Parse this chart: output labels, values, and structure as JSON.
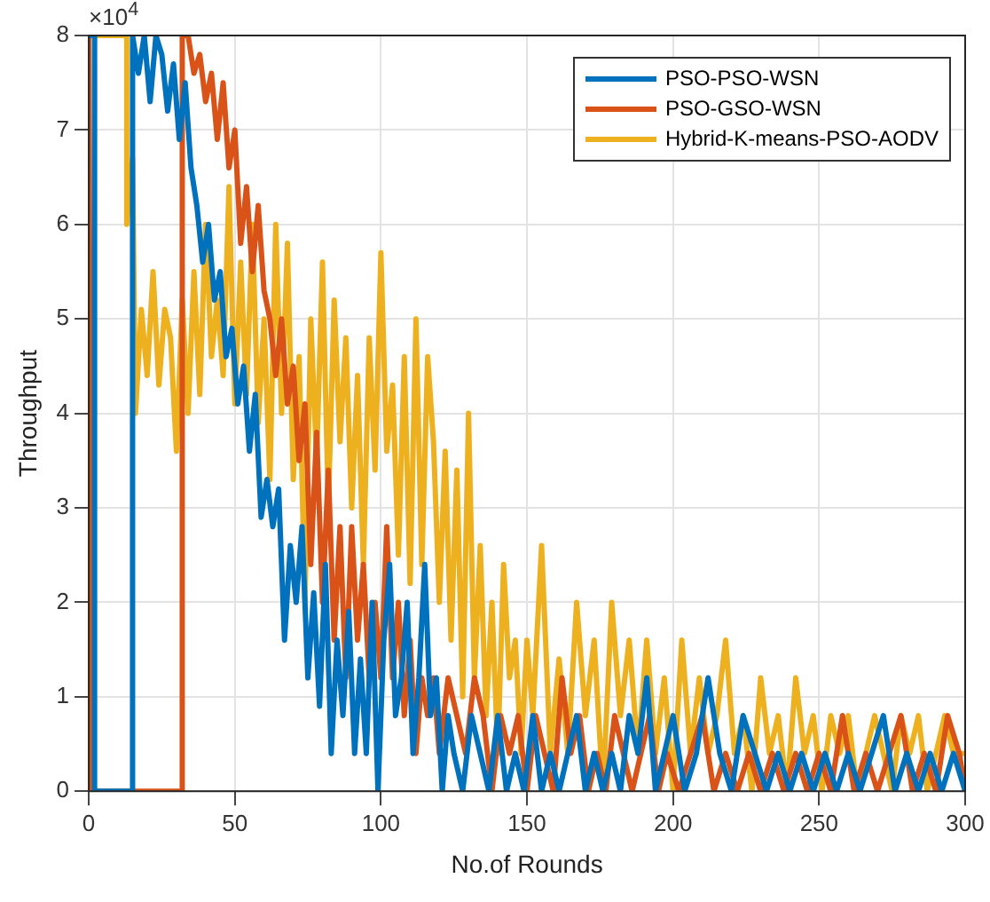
{
  "chart_data": {
    "type": "line",
    "xlabel": "No.of Rounds",
    "ylabel": "Throughput",
    "annotations": [
      "×10$^{4}$"
    ],
    "xlim": [
      0,
      300
    ],
    "xticks": [
      0,
      50,
      100,
      150,
      200,
      250,
      300
    ],
    "ylim": [
      0,
      8
    ],
    "yticks": [
      0,
      1,
      2,
      3,
      4,
      5,
      6,
      7,
      8
    ],
    "grid": true,
    "legend": "top right",
    "marker": "none",
    "line_style": "solid",
    "series": [
      {
        "name": "PSO-PSO-WSN",
        "color": "#0072bd",
        "x": [
          0,
          2,
          2,
          15,
          15,
          17,
          19,
          21,
          23,
          25,
          27,
          29,
          31,
          33,
          35,
          37,
          39,
          41,
          43,
          45,
          47,
          49,
          51,
          53,
          55,
          57,
          59,
          61,
          63,
          65,
          67,
          69,
          71,
          73,
          75,
          77,
          79,
          81,
          83,
          85,
          87,
          89,
          91,
          93,
          95,
          97,
          99,
          101,
          103,
          105,
          107,
          109,
          111,
          113,
          115,
          117,
          119,
          121,
          123,
          125,
          128,
          131,
          134,
          137,
          140,
          143,
          146,
          149,
          152,
          155,
          158,
          161,
          164,
          167,
          170,
          173,
          176,
          179,
          182,
          185,
          188,
          191,
          194,
          197,
          200,
          204,
          208,
          212,
          216,
          220,
          224,
          228,
          232,
          236,
          240,
          244,
          248,
          252,
          256,
          260,
          264,
          268,
          272,
          276,
          280,
          284,
          288,
          292,
          296,
          300
        ],
        "values": [
          8,
          8,
          0,
          0,
          8,
          7.6,
          8,
          7.3,
          8,
          7.8,
          7.2,
          7.7,
          6.9,
          7.5,
          6.6,
          6.2,
          5.6,
          6.0,
          5.2,
          5.5,
          4.6,
          4.9,
          4.1,
          4.5,
          3.6,
          4.2,
          2.9,
          3.3,
          2.8,
          3.2,
          1.6,
          2.6,
          2.0,
          2.8,
          1.2,
          2.1,
          0.9,
          2.4,
          0.4,
          1.6,
          0.8,
          1.9,
          0.4,
          1.4,
          0.4,
          2.0,
          0,
          1.6,
          2.4,
          0.8,
          1.2,
          2.0,
          0.4,
          1.2,
          2.4,
          0.8,
          1.2,
          0,
          0.8,
          0.4,
          0,
          0.8,
          0.4,
          0,
          0.8,
          0,
          0.4,
          0,
          0.8,
          0,
          0.4,
          0,
          0.4,
          0.8,
          0,
          0.4,
          0,
          0.4,
          0,
          0.8,
          0.4,
          1.2,
          0,
          0.4,
          0.8,
          0,
          0.4,
          1.2,
          0.4,
          0,
          0.8,
          0.4,
          0,
          0.4,
          0,
          0.4,
          0,
          0.4,
          0,
          0.4,
          0,
          0.4,
          0.8,
          0,
          0.4,
          0,
          0.4,
          0,
          0.4,
          0
        ]
      },
      {
        "name": "PSO-GSO-WSN",
        "color": "#d95319",
        "x": [
          0,
          1,
          32,
          32,
          34,
          36,
          38,
          40,
          42,
          44,
          46,
          48,
          50,
          52,
          54,
          56,
          58,
          60,
          62,
          64,
          66,
          68,
          70,
          72,
          74,
          76,
          78,
          80,
          82,
          84,
          86,
          88,
          90,
          92,
          94,
          96,
          98,
          100,
          102,
          104,
          106,
          108,
          110,
          112,
          114,
          116,
          118,
          120,
          123,
          126,
          129,
          132,
          135,
          138,
          141,
          144,
          147,
          150,
          153,
          156,
          159,
          162,
          165,
          168,
          171,
          174,
          177,
          180,
          183,
          186,
          189,
          192,
          195,
          198,
          202,
          206,
          210,
          214,
          218,
          222,
          226,
          230,
          234,
          238,
          242,
          246,
          250,
          254,
          258,
          262,
          266,
          270,
          274,
          278,
          282,
          286,
          290,
          294,
          298,
          300
        ],
        "values": [
          8,
          0,
          0,
          8,
          8,
          7.6,
          7.8,
          7.3,
          7.6,
          6.9,
          7.5,
          6.6,
          7.0,
          5.8,
          6.4,
          5.5,
          6.2,
          5.3,
          5.0,
          4.4,
          5.0,
          4.1,
          4.5,
          3.5,
          4.1,
          2.4,
          3.8,
          2.0,
          3.4,
          1.6,
          2.8,
          1.2,
          2.8,
          1.6,
          2.4,
          1.2,
          2.0,
          1.2,
          2.8,
          1.2,
          2.0,
          0.8,
          1.6,
          0.4,
          1.2,
          0.8,
          1.2,
          0.4,
          1.2,
          0.8,
          0.4,
          1.2,
          0.8,
          0,
          0.8,
          0.4,
          0.8,
          0,
          0.8,
          0.4,
          0,
          1.2,
          0.4,
          0.8,
          0,
          0.4,
          0,
          0.8,
          0.4,
          0,
          0.4,
          0.8,
          0,
          0.4,
          0,
          0.4,
          0.8,
          0,
          0.4,
          0,
          0.4,
          0,
          0.4,
          0,
          0.4,
          0,
          0.4,
          0,
          0.8,
          0,
          0.4,
          0,
          0.4,
          0.8,
          0,
          0.4,
          0,
          0.8,
          0.4,
          0
        ]
      },
      {
        "name": "Hybrid-K-means-PSO-AODV",
        "color": "#edb120",
        "x": [
          0,
          13,
          13,
          15,
          16,
          18,
          20,
          22,
          24,
          26,
          28,
          30,
          32,
          34,
          36,
          38,
          40,
          42,
          44,
          46,
          48,
          50,
          52,
          54,
          56,
          58,
          60,
          62,
          64,
          66,
          68,
          70,
          72,
          74,
          76,
          78,
          80,
          82,
          84,
          86,
          88,
          90,
          92,
          94,
          96,
          98,
          100,
          102,
          104,
          106,
          108,
          110,
          112,
          114,
          116,
          118,
          120,
          122,
          124,
          126,
          128,
          130,
          132,
          134,
          136,
          138,
          140,
          142,
          144,
          146,
          148,
          150,
          152,
          155,
          158,
          161,
          164,
          167,
          170,
          173,
          176,
          179,
          182,
          185,
          188,
          191,
          194,
          197,
          200,
          203,
          206,
          209,
          212,
          215,
          218,
          221,
          224,
          227,
          230,
          233,
          236,
          239,
          242,
          245,
          248,
          251,
          254,
          257,
          260,
          263,
          266,
          269,
          272,
          275,
          278,
          281,
          284,
          287,
          290,
          293,
          296,
          300
        ],
        "values": [
          8,
          8,
          6,
          6.7,
          4.0,
          5.1,
          4.4,
          5.5,
          4.3,
          5.1,
          4.8,
          3.6,
          5.2,
          4.0,
          5.5,
          4.2,
          6.0,
          4.6,
          5.2,
          4.4,
          6.4,
          4.1,
          5.6,
          4.2,
          6.0,
          3.9,
          5.0,
          3.3,
          6.0,
          4.0,
          5.8,
          3.3,
          4.6,
          2.0,
          5.0,
          3.5,
          5.6,
          3.0,
          5.2,
          3.7,
          4.8,
          3.0,
          4.4,
          2.4,
          4.8,
          3.4,
          5.7,
          3.6,
          4.3,
          2.5,
          4.6,
          2.2,
          5.0,
          2.4,
          4.6,
          3.7,
          2.0,
          3.6,
          1.6,
          3.4,
          1.0,
          4.0,
          1.2,
          2.6,
          0.8,
          2.0,
          0.4,
          2.4,
          1.2,
          1.6,
          0.4,
          1.6,
          0.8,
          2.6,
          0.4,
          1.4,
          0.4,
          2.0,
          0.8,
          1.6,
          0,
          2.0,
          0.8,
          1.6,
          0.4,
          1.6,
          0.4,
          1.2,
          0,
          1.6,
          0.4,
          1.2,
          0.4,
          0.8,
          1.6,
          0.4,
          0.8,
          0,
          1.2,
          0.4,
          0.8,
          0,
          1.2,
          0.4,
          0.8,
          0,
          0.8,
          0.4,
          0.8,
          0,
          0.4,
          0.8,
          0.4,
          0,
          0.8,
          0.4,
          0.8,
          0,
          0.4,
          0.8,
          0.4,
          0.4
        ]
      }
    ]
  }
}
